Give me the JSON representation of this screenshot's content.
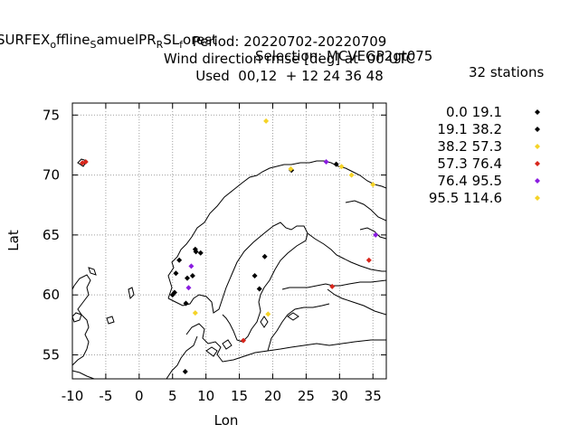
{
  "title": {
    "experiment_main": "SURFEX",
    "experiment_sub1": "o",
    "experiment_mid1": "ffline",
    "experiment_sub2": "S",
    "experiment_mid2": "amuelPR",
    "experiment_sub3": "R",
    "experiment_mid3": "SL",
    "experiment_sub4": "f",
    "experiment_mid4": "orest",
    "selection": "Selection: MCVEGP2gt075",
    "stations": "32 stations",
    "period": "Period: 20220702-20220709",
    "variable": "Wind direction rmse [deg] at  00 UTC",
    "used": "Used  00,12  + 12 24 36 48"
  },
  "chart_data": {
    "type": "scatter",
    "xlabel": "Lon",
    "ylabel": "Lat",
    "xlim": [
      -10,
      37
    ],
    "ylim": [
      53,
      76
    ],
    "xticks": [
      -10,
      -5,
      0,
      5,
      10,
      15,
      20,
      25,
      30,
      35
    ],
    "yticks": [
      55,
      60,
      65,
      70,
      75
    ],
    "grid": true,
    "legend_position": "right",
    "legend": [
      {
        "label": "0.0 19.1",
        "color": "#000000"
      },
      {
        "label": "19.1 38.2",
        "color": "#000000"
      },
      {
        "label": "38.2 57.3",
        "color": "#f5d327"
      },
      {
        "label": "57.3 76.4",
        "color": "#d8261c"
      },
      {
        "label": "76.4 95.5",
        "color": "#8a1ce0"
      },
      {
        "label": "95.5 114.6",
        "color": "#f5d327"
      }
    ],
    "series": [
      {
        "name": "0.0 19.1",
        "color": "#000000",
        "points": [
          {
            "lon": 5.5,
            "lat": 61.8
          },
          {
            "lon": 6.0,
            "lat": 62.9
          },
          {
            "lon": 7.2,
            "lat": 61.4
          },
          {
            "lon": 8.5,
            "lat": 63.6
          },
          {
            "lon": 5.3,
            "lat": 60.2
          },
          {
            "lon": 7.0,
            "lat": 59.3
          },
          {
            "lon": 17.3,
            "lat": 61.6
          },
          {
            "lon": 6.9,
            "lat": 53.6
          }
        ]
      },
      {
        "name": "19.1 38.2",
        "color": "#000000",
        "points": [
          {
            "lon": 8.0,
            "lat": 61.6
          },
          {
            "lon": 8.4,
            "lat": 63.8
          },
          {
            "lon": 5.0,
            "lat": 60.0
          },
          {
            "lon": 9.2,
            "lat": 63.5
          },
          {
            "lon": 18.8,
            "lat": 63.2
          },
          {
            "lon": 18.0,
            "lat": 60.5
          },
          {
            "lon": 22.8,
            "lat": 70.4
          },
          {
            "lon": 29.5,
            "lat": 70.9
          }
        ]
      },
      {
        "name": "38.2 57.3",
        "color": "#f5d327",
        "points": [
          {
            "lon": 19.0,
            "lat": 74.5
          },
          {
            "lon": 8.4,
            "lat": 58.5
          },
          {
            "lon": 19.3,
            "lat": 58.4
          },
          {
            "lon": 30.3,
            "lat": 70.7
          },
          {
            "lon": 31.8,
            "lat": 70.0
          }
        ]
      },
      {
        "name": "57.3 76.4",
        "color": "#d8261c",
        "points": [
          {
            "lon": -8.5,
            "lat": 71.0
          },
          {
            "lon": -8.0,
            "lat": 71.1
          },
          {
            "lon": 15.6,
            "lat": 56.2
          },
          {
            "lon": 28.9,
            "lat": 60.7
          },
          {
            "lon": 34.4,
            "lat": 62.9
          }
        ]
      },
      {
        "name": "76.4 95.5",
        "color": "#8a1ce0",
        "points": [
          {
            "lon": 7.8,
            "lat": 62.4
          },
          {
            "lon": 7.4,
            "lat": 60.6
          },
          {
            "lon": 28.0,
            "lat": 71.1
          },
          {
            "lon": 35.4,
            "lat": 65.0
          }
        ]
      },
      {
        "name": "95.5 114.6",
        "color": "#f5d327",
        "points": [
          {
            "lon": 22.7,
            "lat": 70.5
          },
          {
            "lon": 35.0,
            "lat": 69.2
          }
        ]
      }
    ]
  }
}
